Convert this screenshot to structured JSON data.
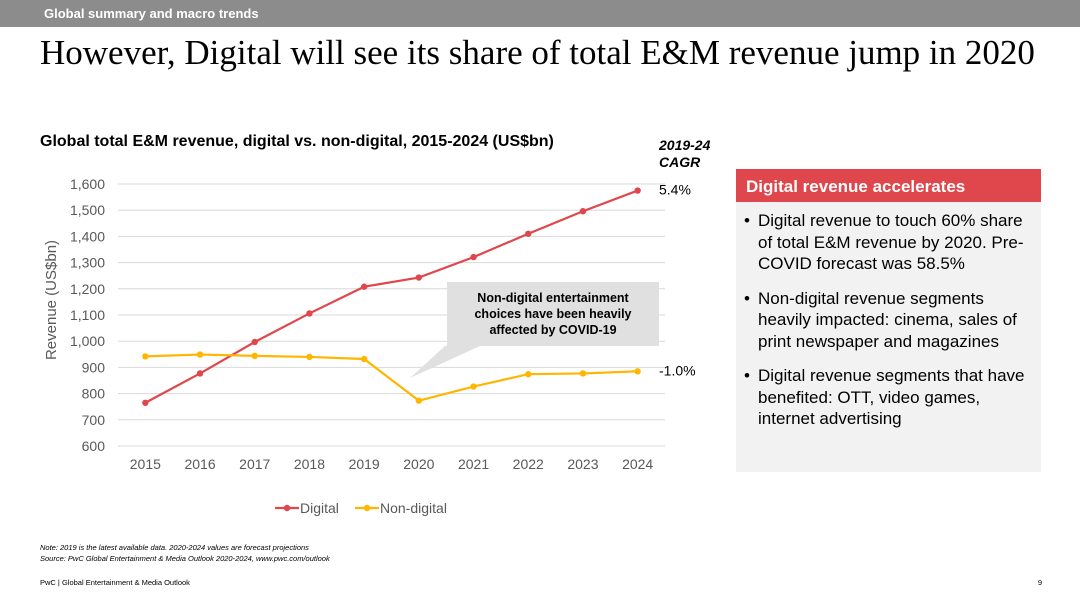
{
  "topbar": {
    "section": "Global summary and macro trends"
  },
  "headline": "However, Digital will see its share of total E&M revenue jump in 2020",
  "chart_data": {
    "type": "line",
    "title": "Global total E&M revenue, digital vs. non-digital, 2015-2024 (US$bn)",
    "xlabel": "",
    "ylabel": "Revenue (US$bn)",
    "ylim": [
      600,
      1600
    ],
    "yticks": [
      600,
      700,
      800,
      900,
      "1,000",
      "1,100",
      "1,200",
      "1,300",
      "1,400",
      "1,500",
      "1,600"
    ],
    "ytick_values": [
      600,
      700,
      800,
      900,
      1000,
      1100,
      1200,
      1300,
      1400,
      1500,
      1600
    ],
    "x": [
      "2015",
      "2016",
      "2017",
      "2018",
      "2019",
      "2020",
      "2021",
      "2022",
      "2023",
      "2024"
    ],
    "grid": true,
    "legend": "bottom",
    "series": [
      {
        "name": "Digital",
        "color": "#e0474c",
        "values": [
          765,
          877,
          997,
          1106,
          1208,
          1243,
          1321,
          1410,
          1496,
          1575
        ]
      },
      {
        "name": "Non-digital",
        "color": "#ffb600",
        "values": [
          942,
          949,
          944,
          940,
          932,
          773,
          827,
          874,
          877,
          885
        ]
      }
    ],
    "cagr_header": "2019-24 CAGR",
    "cagr": {
      "digital": "5.4%",
      "non_digital": "-1.0%"
    },
    "annotation": {
      "lines": [
        "Non-digital entertainment",
        "choices have been heavily",
        "affected by COVID-19"
      ],
      "fill": "#e0e0e0"
    }
  },
  "panel": {
    "title": "Digital revenue accelerates",
    "accent": "#e0474c",
    "bullets": [
      "Digital revenue to touch 60% share of total E&M revenue by 2020. Pre-COVID forecast was 58.5%",
      "Non-digital revenue segments heavily impacted: cinema, sales of print newspaper and magazines",
      "Digital revenue segments that have benefited: OTT, video games, internet advertising"
    ]
  },
  "notes": {
    "note": "Note: 2019 is the latest available data. 2020-2024 values are forecast projections",
    "source": "Source: PwC Global Entertainment & Media Outlook 2020-2024, www.pwc.com/outlook"
  },
  "footer": {
    "left": "PwC | Global Entertainment & Media Outlook",
    "page": "9"
  }
}
